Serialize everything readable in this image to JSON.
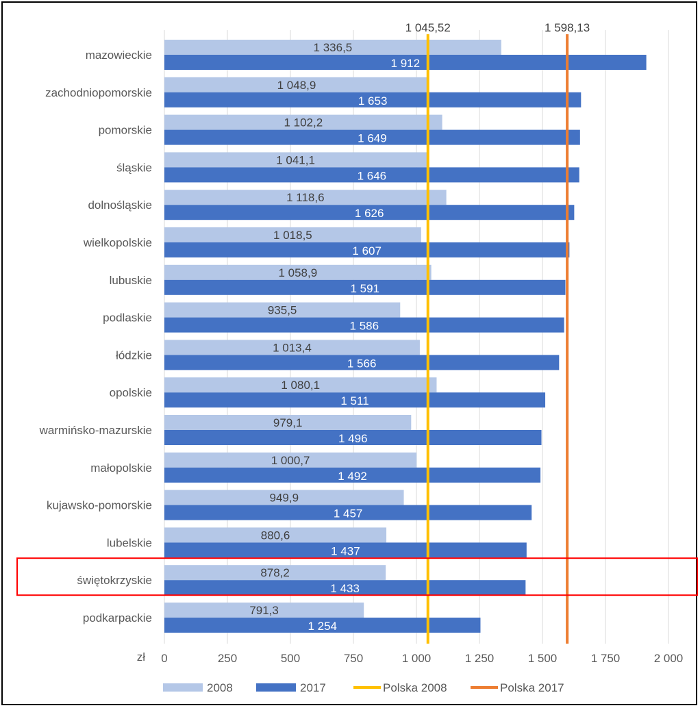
{
  "chart_data": {
    "type": "bar",
    "orientation": "horizontal",
    "categories": [
      "mazowieckie",
      "zachodniopomorskie",
      "pomorskie",
      "śląskie",
      "dolnośląskie",
      "wielkopolskie",
      "lubuskie",
      "podlaskie",
      "łódzkie",
      "opolskie",
      "warmińsko-mazurskie",
      "małopolskie",
      "kujawsko-pomorskie",
      "lubelskie",
      "świętokrzyskie",
      "podkarpackie"
    ],
    "series": [
      {
        "name": "2008",
        "color": "#b4c7e7",
        "values": [
          1336.5,
          1048.9,
          1102.2,
          1041.1,
          1118.6,
          1018.5,
          1058.9,
          935.5,
          1013.4,
          1080.1,
          979.1,
          1000.7,
          949.9,
          880.6,
          878.2,
          791.3
        ],
        "labels": [
          "1 336,5",
          "1 048,9",
          "1 102,2",
          "1 041,1",
          "1 118,6",
          "1 018,5",
          "1 058,9",
          "935,5",
          "1 013,4",
          "1 080,1",
          "979,1",
          "1 000,7",
          "949,9",
          "880,6",
          "878,2",
          "791,3"
        ]
      },
      {
        "name": "2017",
        "color": "#4472c4",
        "values": [
          1912,
          1653,
          1649,
          1646,
          1626,
          1607,
          1591,
          1586,
          1566,
          1511,
          1496,
          1492,
          1457,
          1437,
          1433,
          1254
        ],
        "labels": [
          "1 912",
          "1 653",
          "1 649",
          "1 646",
          "1 626",
          "1 607",
          "1 591",
          "1 586",
          "1 566",
          "1 511",
          "1 496",
          "1 492",
          "1 457",
          "1 437",
          "1 433",
          "1 254"
        ]
      }
    ],
    "reference_lines": [
      {
        "name": "Polska 2008",
        "value": 1045.52,
        "label": "1 045,52",
        "color": "#ffc000"
      },
      {
        "name": "Polska 2017",
        "value": 1598.13,
        "label": "1 598,13",
        "color": "#ed7d31"
      }
    ],
    "xlim": [
      0,
      2000
    ],
    "xticks": [
      0,
      250,
      500,
      750,
      1000,
      1250,
      1500,
      1750,
      2000
    ],
    "xtick_labels": [
      "0",
      "250",
      "500",
      "750",
      "1 000",
      "1 250",
      "1 500",
      "1 750",
      "2 000"
    ],
    "axis_unit": "zł",
    "grid": "vertical",
    "legend_position": "bottom",
    "highlight": {
      "category": "świętokrzyskie",
      "color": "#ff0000"
    }
  }
}
